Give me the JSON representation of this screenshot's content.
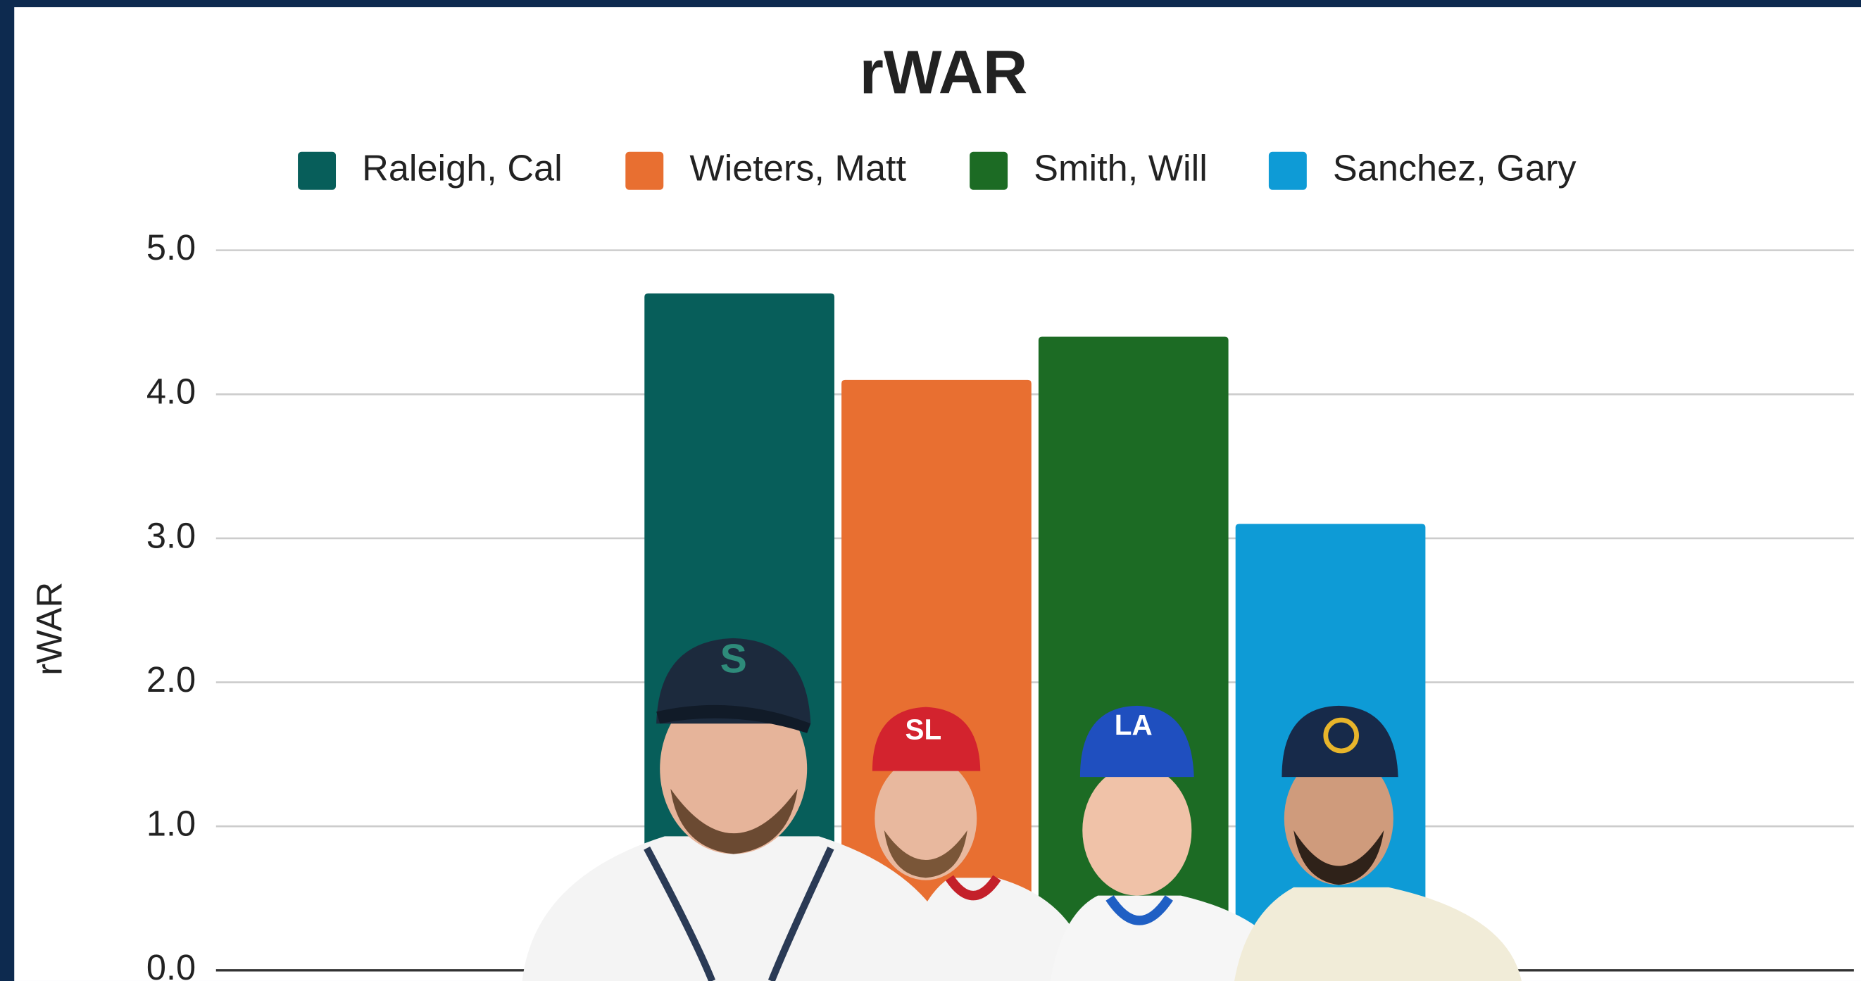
{
  "chart_data": {
    "type": "bar",
    "title": "rWAR",
    "y_label": "rWAR",
    "ylim": [
      0,
      5
    ],
    "yticks": [
      {
        "value": 0,
        "label": "0.0"
      },
      {
        "value": 1,
        "label": "1.0"
      },
      {
        "value": 2,
        "label": "2.0"
      },
      {
        "value": 3,
        "label": "3.0"
      },
      {
        "value": 4,
        "label": "4.0"
      },
      {
        "value": 5,
        "label": "5.0"
      }
    ],
    "grid": true,
    "legend": "top",
    "series": [
      {
        "name": "Raleigh, Cal",
        "color": "#075e5a",
        "values": [
          4.7
        ]
      },
      {
        "name": "Wieters, Matt",
        "color": "#e86f31",
        "values": [
          4.1
        ]
      },
      {
        "name": "Smith, Will",
        "color": "#1c6b24",
        "values": [
          4.4
        ]
      },
      {
        "name": "Sanchez, Gary",
        "color": "#0e9bd6",
        "values": [
          3.1
        ]
      }
    ]
  }
}
